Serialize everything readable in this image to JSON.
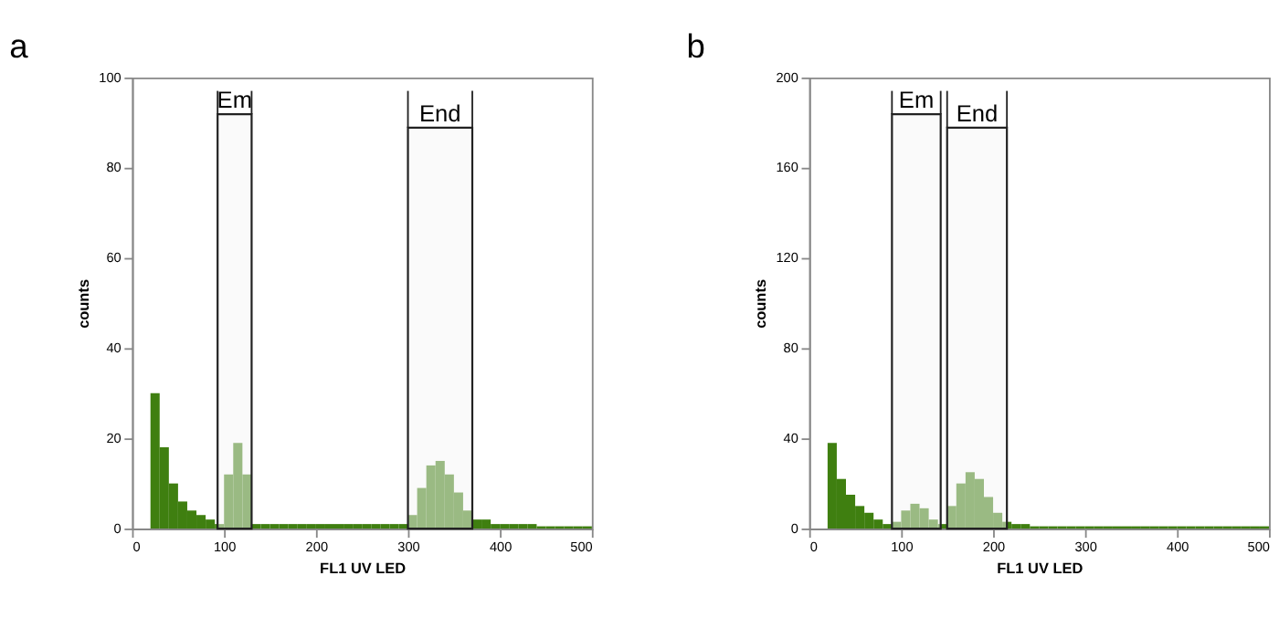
{
  "chart_data": [
    {
      "type": "histogram",
      "title": "a",
      "xlabel": "FL1  UV LED",
      "ylabel": "counts",
      "color": "#3f7f10",
      "bins": [
        20,
        30,
        40,
        50,
        60,
        70,
        80,
        90,
        100,
        110,
        120,
        130,
        140,
        150,
        160,
        170,
        180,
        190,
        200,
        210,
        220,
        230,
        240,
        250,
        260,
        270,
        280,
        290,
        300,
        310,
        320,
        330,
        340,
        350,
        360,
        370,
        380,
        390,
        400,
        410,
        420,
        430,
        440,
        450,
        460,
        470,
        480,
        490,
        500
      ],
      "values": [
        30,
        18,
        10,
        6,
        4,
        3,
        2,
        1,
        12,
        19,
        12,
        1,
        1,
        1,
        1,
        1,
        1,
        1,
        1,
        1,
        1,
        1,
        1,
        1,
        1,
        1,
        1,
        1,
        3,
        9,
        14,
        15,
        12,
        8,
        4,
        2,
        2,
        1,
        1,
        1,
        1,
        1,
        0.5,
        0.5,
        0.5,
        0.5,
        0.5,
        0.5
      ],
      "xlim": [
        0,
        500
      ],
      "xticks": [
        0,
        100,
        200,
        300,
        400,
        500
      ],
      "ylim": [
        0,
        100
      ],
      "yticks": [
        0,
        20,
        40,
        60,
        80,
        100
      ],
      "grid": false,
      "bands": [
        {
          "axis": "x",
          "from": 93,
          "to": 130,
          "label": "Em"
        },
        {
          "axis": "x",
          "from": 300,
          "to": 370,
          "label": "End"
        }
      ]
    },
    {
      "type": "histogram",
      "title": "b",
      "xlabel": "FL1  UV LED",
      "ylabel": "counts",
      "color": "#3f7f10",
      "bins": [
        20,
        30,
        40,
        50,
        60,
        70,
        80,
        90,
        100,
        110,
        120,
        130,
        140,
        150,
        160,
        170,
        180,
        190,
        200,
        210,
        220,
        230,
        240,
        250,
        260,
        270,
        280,
        290,
        300,
        310,
        320,
        330,
        340,
        350,
        360,
        370,
        380,
        390,
        400,
        410,
        420,
        430,
        440,
        450,
        460,
        470,
        480,
        490,
        500
      ],
      "values": [
        38,
        22,
        15,
        10,
        7,
        4,
        2,
        3,
        8,
        11,
        9,
        4,
        2,
        10,
        20,
        25,
        22,
        14,
        7,
        3,
        2,
        2,
        1,
        1,
        1,
        1,
        1,
        1,
        1,
        1,
        1,
        1,
        1,
        1,
        1,
        1,
        1,
        1,
        1,
        1,
        1,
        1,
        1,
        1,
        1,
        1,
        1,
        1
      ],
      "xlim": [
        0,
        500
      ],
      "xticks": [
        0,
        100,
        200,
        300,
        400,
        500
      ],
      "ylim": [
        0,
        200
      ],
      "yticks": [
        0,
        40,
        80,
        120,
        160,
        200
      ],
      "grid": false,
      "bands": [
        {
          "axis": "x",
          "from": 90,
          "to": 143,
          "label": "Em"
        },
        {
          "axis": "x",
          "from": 150,
          "to": 215,
          "label": "End"
        }
      ]
    }
  ]
}
